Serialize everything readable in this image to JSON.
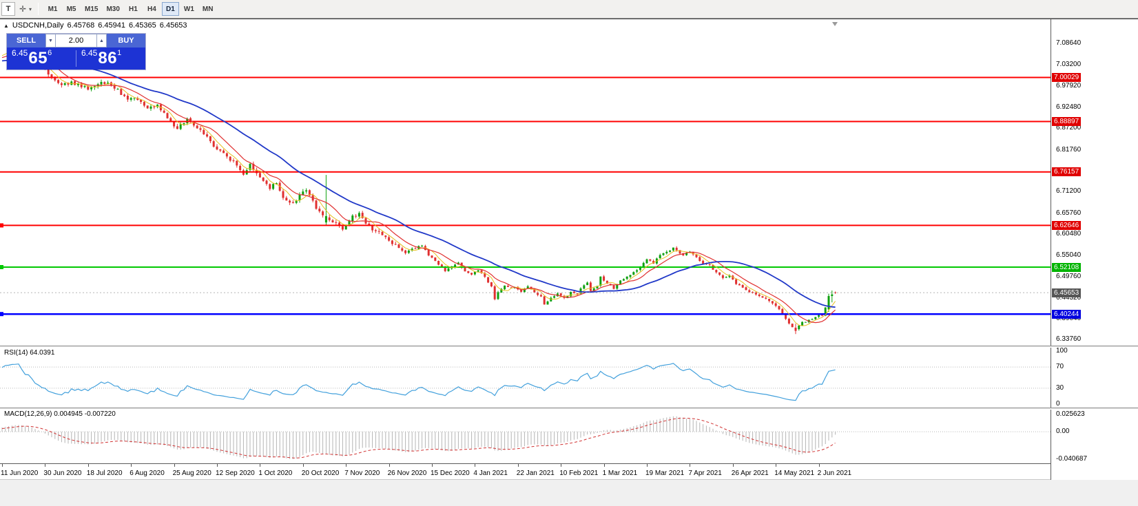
{
  "toolbar": {
    "tool_t": "T",
    "timeframes": [
      "M1",
      "M5",
      "M15",
      "M30",
      "H1",
      "H4",
      "D1",
      "W1",
      "MN"
    ],
    "active": "D1"
  },
  "header": {
    "icon": "▲",
    "symbol": "USDCNH,Daily",
    "open": "6.45768",
    "high": "6.45941",
    "low": "6.45365",
    "close": "6.45653"
  },
  "trade": {
    "sell_label": "SELL",
    "buy_label": "BUY",
    "volume": "2.00",
    "sell_price": {
      "prefix": "6.45",
      "big": "65",
      "sup": "6"
    },
    "buy_price": {
      "prefix": "6.45",
      "big": "86",
      "sup": "1"
    }
  },
  "price_axis": {
    "labels": [
      {
        "t": "7.08640",
        "p": 7.0864
      },
      {
        "t": "7.03200",
        "p": 7.032
      },
      {
        "t": "6.97920",
        "p": 6.9792
      },
      {
        "t": "6.92480",
        "p": 6.9248
      },
      {
        "t": "6.87200",
        "p": 6.872
      },
      {
        "t": "6.81760",
        "p": 6.8176
      },
      {
        "t": "6.71200",
        "p": 6.712
      },
      {
        "t": "6.65760",
        "p": 6.6576
      },
      {
        "t": "6.60480",
        "p": 6.6048
      },
      {
        "t": "6.55040",
        "p": 6.5504
      },
      {
        "t": "6.49760",
        "p": 6.4976
      },
      {
        "t": "6.44320",
        "p": 6.4432
      },
      {
        "t": "6.39040",
        "p": 6.3904
      },
      {
        "t": "6.33760",
        "p": 6.3376
      }
    ],
    "badges": [
      {
        "t": "7.00029",
        "p": 7.00029,
        "bg": "#E00000"
      },
      {
        "t": "6.88897",
        "p": 6.88897,
        "bg": "#E00000"
      },
      {
        "t": "6.76157",
        "p": 6.76157,
        "bg": "#E00000"
      },
      {
        "t": "6.62646",
        "p": 6.62646,
        "bg": "#E00000"
      },
      {
        "t": "6.52108",
        "p": 6.52108,
        "bg": "#00B400"
      },
      {
        "t": "6.45653",
        "p": 6.45653,
        "bg": "#555555"
      },
      {
        "t": "6.40244",
        "p": 6.40244,
        "bg": "#0000E0"
      }
    ]
  },
  "indicators": {
    "rsi_label": "RSI(14) 64.0391",
    "rsi_levels": [
      {
        "t": "100",
        "v": 100
      },
      {
        "t": "70",
        "v": 70
      },
      {
        "t": "30",
        "v": 30
      },
      {
        "t": "0",
        "v": 0
      }
    ],
    "macd_label": "MACD(12,26,9) 0.004945 -0.007220",
    "macd_axis": [
      {
        "t": "0.025623",
        "v": 0.025623
      },
      {
        "t": "0.00",
        "v": 0
      },
      {
        "t": "-0.040687",
        "v": -0.040687
      }
    ]
  },
  "date_axis": [
    "11 Jun 2020",
    "30 Jun 2020",
    "18 Jul 2020",
    "6 Aug 2020",
    "25 Aug 2020",
    "12 Sep 2020",
    "1 Oct 2020",
    "20 Oct 2020",
    "7 Nov 2020",
    "26 Nov 2020",
    "15 Dec 2020",
    "4 Jan 2021",
    "22 Jan 2021",
    "10 Feb 2021",
    "1 Mar 2021",
    "19 Mar 2021",
    "7 Apr 2021",
    "26 Apr 2021",
    "14 May 2021",
    "2 Jun 2021"
  ],
  "chart_data": {
    "type": "candlestick",
    "symbol": "USDCNH",
    "timeframe": "Daily",
    "current_bar": {
      "open": 6.45768,
      "high": 6.45941,
      "low": 6.45365,
      "close": 6.45653
    },
    "bid": 6.45653,
    "ask": 6.45861,
    "candles_total": 253,
    "price_range_visible": [
      6.3376,
      7.0864
    ],
    "hlines": [
      {
        "price": 7.00029,
        "color": "#FF0000",
        "width": 2,
        "anchor": false
      },
      {
        "price": 6.88897,
        "color": "#FF0000",
        "width": 2,
        "anchor": false
      },
      {
        "price": 6.76157,
        "color": "#FF0000",
        "width": 2,
        "anchor": false
      },
      {
        "price": 6.62646,
        "color": "#FF0000",
        "width": 2,
        "anchor": true
      },
      {
        "price": 6.52108,
        "color": "#00C800",
        "width": 2,
        "anchor": true
      },
      {
        "price": 6.40244,
        "color": "#0000FF",
        "width": 2.5,
        "anchor": true
      }
    ],
    "prehistory": [
      [
        -45,
        7.01
      ],
      [
        -30,
        7.045
      ],
      [
        -15,
        7.03
      ],
      [
        -1,
        7.058
      ]
    ],
    "close_path": [
      [
        0,
        7.065
      ],
      [
        4,
        7.075
      ],
      [
        8,
        7.058
      ],
      [
        12,
        7.028
      ],
      [
        15,
        7.002
      ],
      [
        17,
        6.982
      ],
      [
        21,
        6.988
      ],
      [
        26,
        6.972
      ],
      [
        31,
        6.988
      ],
      [
        35,
        6.968
      ],
      [
        38,
        6.942
      ],
      [
        41,
        6.948
      ],
      [
        44,
        6.918
      ],
      [
        47,
        6.932
      ],
      [
        50,
        6.898
      ],
      [
        53,
        6.872
      ],
      [
        56,
        6.895
      ],
      [
        59,
        6.872
      ],
      [
        62,
        6.848
      ],
      [
        65,
        6.818
      ],
      [
        68,
        6.802
      ],
      [
        71,
        6.778
      ],
      [
        73,
        6.756
      ],
      [
        75,
        6.778
      ],
      [
        78,
        6.748
      ],
      [
        81,
        6.722
      ],
      [
        83,
        6.732
      ],
      [
        85,
        6.698
      ],
      [
        88,
        6.682
      ],
      [
        90,
        6.702
      ],
      [
        92,
        6.715
      ],
      [
        95,
        6.672
      ],
      [
        97,
        6.656
      ],
      [
        99,
        6.642
      ],
      [
        101,
        6.632
      ],
      [
        103,
        6.615
      ],
      [
        106,
        6.648
      ],
      [
        108,
        6.66
      ],
      [
        110,
        6.628
      ],
      [
        113,
        6.612
      ],
      [
        115,
        6.602
      ],
      [
        117,
        6.588
      ],
      [
        120,
        6.572
      ],
      [
        122,
        6.556
      ],
      [
        124,
        6.566
      ],
      [
        127,
        6.576
      ],
      [
        129,
        6.552
      ],
      [
        132,
        6.528
      ],
      [
        134,
        6.512
      ],
      [
        136,
        6.522
      ],
      [
        138,
        6.532
      ],
      [
        140,
        6.512
      ],
      [
        142,
        6.502
      ],
      [
        144,
        6.512
      ],
      [
        146,
        6.498
      ],
      [
        148,
        6.47
      ],
      [
        149,
        6.438
      ],
      [
        150,
        6.458
      ],
      [
        152,
        6.472
      ],
      [
        155,
        6.468
      ],
      [
        157,
        6.458
      ],
      [
        159,
        6.472
      ],
      [
        161,
        6.456
      ],
      [
        163,
        6.448
      ],
      [
        164,
        6.428
      ],
      [
        166,
        6.442
      ],
      [
        168,
        6.455
      ],
      [
        170,
        6.442
      ],
      [
        172,
        6.458
      ],
      [
        174,
        6.452
      ],
      [
        175,
        6.468
      ],
      [
        177,
        6.482
      ],
      [
        178,
        6.462
      ],
      [
        180,
        6.472
      ],
      [
        181,
        6.498
      ],
      [
        183,
        6.478
      ],
      [
        185,
        6.468
      ],
      [
        187,
        6.488
      ],
      [
        189,
        6.498
      ],
      [
        191,
        6.508
      ],
      [
        193,
        6.522
      ],
      [
        195,
        6.542
      ],
      [
        197,
        6.532
      ],
      [
        199,
        6.552
      ],
      [
        201,
        6.562
      ],
      [
        203,
        6.568
      ],
      [
        206,
        6.552
      ],
      [
        208,
        6.558
      ],
      [
        210,
        6.545
      ],
      [
        212,
        6.532
      ],
      [
        214,
        6.525
      ],
      [
        216,
        6.508
      ],
      [
        218,
        6.492
      ],
      [
        220,
        6.498
      ],
      [
        222,
        6.478
      ],
      [
        224,
        6.468
      ],
      [
        226,
        6.458
      ],
      [
        228,
        6.452
      ],
      [
        230,
        6.445
      ],
      [
        233,
        6.428
      ],
      [
        235,
        6.415
      ],
      [
        237,
        6.392
      ],
      [
        238,
        6.378
      ],
      [
        240,
        6.362
      ],
      [
        241,
        6.375
      ],
      [
        243,
        6.385
      ],
      [
        245,
        6.39
      ],
      [
        246,
        6.396
      ],
      [
        248,
        6.4
      ],
      [
        249,
        6.418
      ],
      [
        250,
        6.448
      ],
      [
        252,
        6.4565
      ]
    ],
    "overrides": {
      "98": {
        "o": 6.634,
        "c": 6.65,
        "h": 6.754,
        "l": 6.626
      },
      "240": {
        "o": 6.368,
        "c": 6.36,
        "h": 6.378,
        "l": 6.352
      },
      "250": {
        "o": 6.414,
        "c": 6.448,
        "h": 6.454,
        "l": 6.408
      },
      "251": {
        "o": 6.448,
        "c": 6.452,
        "h": 6.462,
        "l": 6.432
      },
      "252": {
        "o": 6.45768,
        "c": 6.45653,
        "h": 6.45941,
        "l": 6.45365
      }
    },
    "ma_periods": {
      "fast": 5,
      "mid": 10,
      "slow": 30
    },
    "rsi_current": 64.0391,
    "macd_current": {
      "macd": 0.004945,
      "signal": -0.00722
    },
    "macd_range": [
      -0.040687,
      0.025623
    ],
    "colors": {
      "up": "#0FA00F",
      "down": "#E03030",
      "ma_fast": "#E8C020",
      "ma_mid": "#E03030",
      "ma_slow": "#2038C8",
      "rsi": "#42A0DC",
      "rsi_level": "#B8B8B8",
      "macd_hist": "#B4B4B4",
      "macd_signal": "#D03030"
    }
  }
}
